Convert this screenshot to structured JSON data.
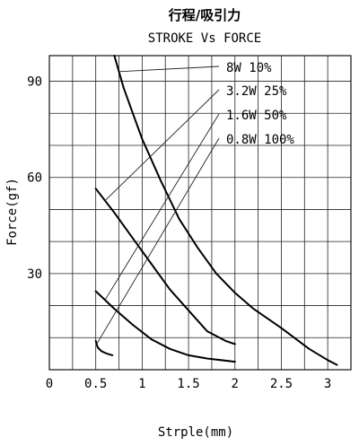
{
  "chart_data": {
    "type": "line",
    "title": "行程/吸引力",
    "subtitle": "STROKE Vs FORCE",
    "xlabel": "Strple(mm)",
    "ylabel": "Force(gf)",
    "xlim": [
      0,
      3.25
    ],
    "ylim": [
      0,
      98
    ],
    "x_ticks": [
      {
        "value": 0,
        "label": "0"
      },
      {
        "value": 0.5,
        "label": "0.5"
      },
      {
        "value": 1,
        "label": "1"
      },
      {
        "value": 1.5,
        "label": "1.5"
      },
      {
        "value": 2,
        "label": "2"
      },
      {
        "value": 2.5,
        "label": "2.5"
      },
      {
        "value": 3,
        "label": "3"
      }
    ],
    "y_ticks": [
      {
        "value": 30,
        "label": "30"
      },
      {
        "value": 60,
        "label": "60"
      },
      {
        "value": 90,
        "label": "90"
      }
    ],
    "grid": true,
    "series": [
      {
        "name": "8W 10%",
        "x": [
          0.7,
          0.8,
          0.9,
          1.0,
          1.2,
          1.4,
          1.6,
          1.8,
          2.0,
          2.2,
          2.5,
          2.8,
          3.0,
          3.1
        ],
        "y": [
          98,
          88,
          80,
          72,
          59,
          47,
          38,
          30,
          24,
          19,
          13,
          6.5,
          3,
          1.5
        ]
      },
      {
        "name": "3.2W 25%",
        "x": [
          0.5,
          0.7,
          0.9,
          1.1,
          1.3,
          1.5,
          1.7,
          1.9,
          2.0
        ],
        "y": [
          56.5,
          49,
          41,
          33,
          25,
          18.5,
          12,
          9,
          8
        ]
      },
      {
        "name": "1.6W 50%",
        "x": [
          0.5,
          0.7,
          0.9,
          1.1,
          1.3,
          1.5,
          1.7,
          2.0
        ],
        "y": [
          24.5,
          19,
          14,
          9.5,
          6.5,
          4.5,
          3.5,
          2.5
        ]
      },
      {
        "name": "0.8W 100%",
        "x": [
          0.5,
          0.52,
          0.56,
          0.62,
          0.68
        ],
        "y": [
          9,
          7,
          5.8,
          5,
          4.5
        ]
      }
    ]
  }
}
